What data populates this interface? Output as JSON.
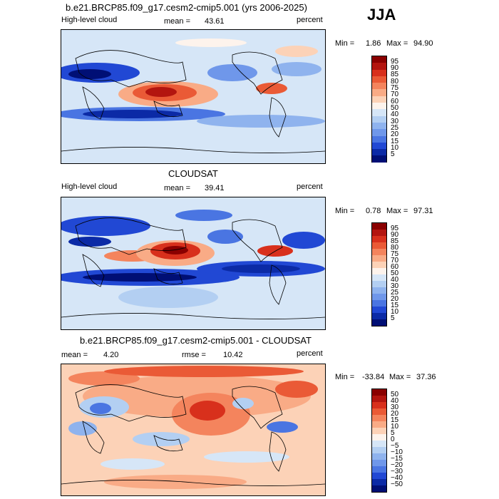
{
  "season": "JJA",
  "chart_data": [
    {
      "type": "heatmap",
      "title": "b.e21.BRCP85.f09_g17.cesm2-cmip5.001 (yrs 2006-2025)",
      "variable": "High-level cloud",
      "stat_label": "mean =",
      "stat_value": "43.61",
      "units": "percent",
      "min_label": "Min =",
      "min_value": "1.86",
      "max_label": "Max =",
      "max_value": "94.90",
      "levels": [
        "95",
        "90",
        "85",
        "80",
        "75",
        "70",
        "60",
        "50",
        "40",
        "30",
        "25",
        "20",
        "15",
        "10",
        "5"
      ],
      "colors": [
        "#8a0000",
        "#b3150f",
        "#d8301c",
        "#ea5a36",
        "#f4845d",
        "#f9ab86",
        "#fcd2b7",
        "#fdf3ec",
        "#d6e6f7",
        "#b3cff2",
        "#8fb3ee",
        "#6f97ea",
        "#4a75e2",
        "#2148d4",
        "#0b2aa6",
        "#000f75"
      ]
    },
    {
      "type": "heatmap",
      "title": "CLOUDSAT",
      "variable": "High-level cloud",
      "stat_label": "mean =",
      "stat_value": "39.41",
      "units": "percent",
      "min_label": "Min =",
      "min_value": "0.78",
      "max_label": "Max =",
      "max_value": "97.31",
      "levels": [
        "95",
        "90",
        "85",
        "80",
        "75",
        "70",
        "60",
        "50",
        "40",
        "30",
        "25",
        "20",
        "15",
        "10",
        "5"
      ],
      "colors": [
        "#8a0000",
        "#b3150f",
        "#d8301c",
        "#ea5a36",
        "#f4845d",
        "#f9ab86",
        "#fcd2b7",
        "#fdf3ec",
        "#d6e6f7",
        "#b3cff2",
        "#8fb3ee",
        "#6f97ea",
        "#4a75e2",
        "#2148d4",
        "#0b2aa6",
        "#000f75"
      ]
    },
    {
      "type": "heatmap",
      "title": "b.e21.BRCP85.f09_g17.cesm2-cmip5.001 - CLOUDSAT",
      "stat_label": "mean =",
      "stat_value": "4.20",
      "rmse_label": "rmse =",
      "rmse_value": "10.42",
      "units": "percent",
      "min_label": "Min =",
      "min_value": "-33.84",
      "max_label": "Max =",
      "max_value": "37.36",
      "levels": [
        "50",
        "40",
        "30",
        "20",
        "15",
        "10",
        "5",
        "0",
        "−5",
        "−10",
        "−15",
        "−20",
        "−30",
        "−40",
        "−50"
      ],
      "colors": [
        "#8a0000",
        "#b3150f",
        "#d8301c",
        "#ea5a36",
        "#f4845d",
        "#f9ab86",
        "#fcd2b7",
        "#fdf3ec",
        "#d6e6f7",
        "#b3cff2",
        "#8fb3ee",
        "#6f97ea",
        "#4a75e2",
        "#2148d4",
        "#0b2aa6",
        "#000f75"
      ]
    }
  ]
}
